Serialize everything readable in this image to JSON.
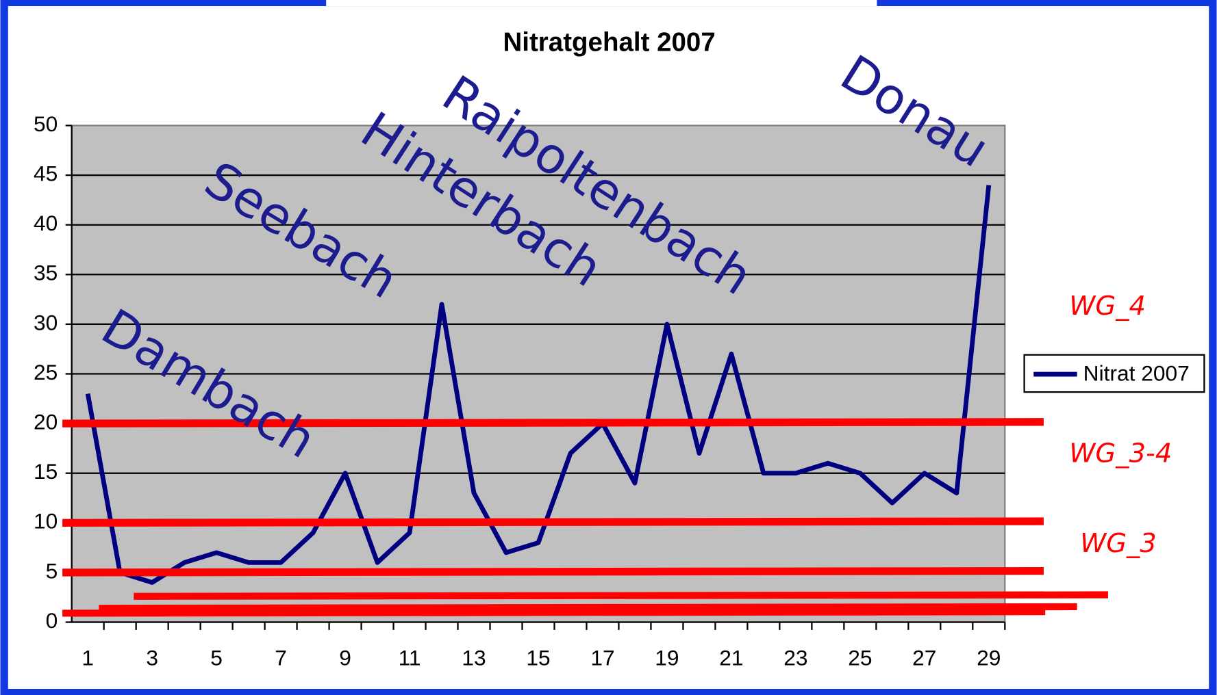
{
  "chart_data": {
    "type": "line",
    "title": "Nitratgehalt 2007",
    "categories": [
      "1",
      null,
      "3",
      null,
      "5",
      null,
      "7",
      null,
      "9",
      null,
      "11",
      null,
      "13",
      null,
      "15",
      null,
      "17",
      null,
      "19",
      null,
      "21",
      null,
      "23",
      null,
      "25",
      null,
      "27",
      null,
      "29"
    ],
    "series": [
      {
        "name": "Nitrat 2007",
        "color": "#000080",
        "values": [
          23,
          5,
          4,
          6,
          7,
          6,
          6,
          9,
          15,
          6,
          9,
          32,
          13,
          7,
          8,
          17,
          20,
          14,
          30,
          17,
          27,
          15,
          15,
          16,
          15,
          12,
          15,
          13,
          44
        ]
      }
    ],
    "ylim": [
      0,
      50
    ],
    "yticks": [
      0,
      5,
      10,
      15,
      20,
      25,
      30,
      35,
      40,
      45,
      50
    ],
    "grid": true,
    "legend": "right",
    "threshold_lines": [
      20,
      10,
      5,
      2.6,
      1.4,
      0.9
    ],
    "threshold_color": "#ff0000",
    "annotations": [
      "Dambach",
      "Seebach",
      "Hinterbach",
      "Raipoltenbach",
      "Donau"
    ],
    "zone_labels": [
      "WG_4",
      "WG_3-4",
      "WG_3"
    ]
  }
}
